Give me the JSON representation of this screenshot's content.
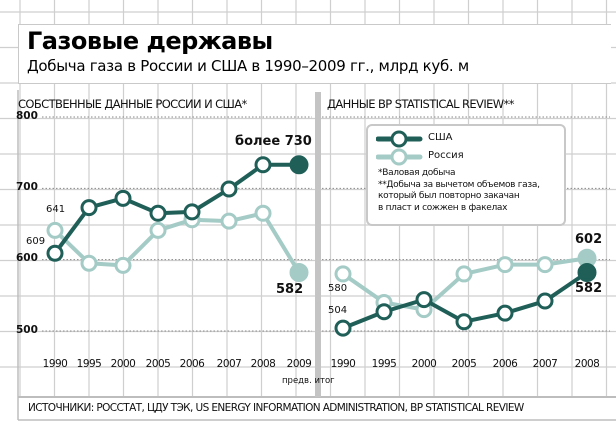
{
  "header": {
    "title": "Газовые державы",
    "subtitle": "Добыча газа в России и США в 1990–2009 гг., млрд куб. м"
  },
  "colors": {
    "usa": "#1f5f58",
    "russia": "#a4cbc6",
    "grid": "#cfcfcf",
    "divider": "#c4c4c4"
  },
  "legend": {
    "items": [
      {
        "label": "США",
        "color": "#1f5f58"
      },
      {
        "label": "Россия",
        "color": "#a4cbc6"
      }
    ],
    "notes": [
      "*Валовая добыча",
      "**Добыча за вычетом объемов газа,",
      "который был повторно закачан",
      "в пласт и сожжен в факелах"
    ]
  },
  "sources": "ИСТОЧНИКИ: РОССТАТ, ЦДУ ТЭК, US ENERGY INFORMATION ADMINISTRATION, BP STATISTICAL REVIEW",
  "chart_data": [
    {
      "type": "line",
      "title": "СОБСТВЕННЫЕ ДАННЫЕ РОССИИ И США*",
      "categories": [
        "1990",
        "1995",
        "2000",
        "2005",
        "2006",
        "2007",
        "2008",
        "2009"
      ],
      "category_note": "предв. итог",
      "yticks": [
        "800",
        "700",
        "600",
        "500"
      ],
      "ylim": [
        500,
        800
      ],
      "ylabel": "",
      "xlabel": "",
      "series": [
        {
          "name": "США",
          "values": [
            609,
            673,
            686,
            665,
            667,
            699,
            733,
            733
          ],
          "last_filled": true
        },
        {
          "name": "Россия",
          "values": [
            641,
            595,
            592,
            641,
            656,
            654,
            665,
            582
          ],
          "last_filled": true
        }
      ],
      "annotations": {
        "usa_first": "609",
        "russia_first": "641",
        "usa_last": "более 730",
        "russia_last": "582"
      }
    },
    {
      "type": "line",
      "title": "ДАННЫЕ BP STATISTICAL REVIEW**",
      "categories": [
        "1990",
        "1995",
        "2000",
        "2005",
        "2006",
        "2007",
        "2008"
      ],
      "ylim": [
        500,
        800
      ],
      "ylabel": "",
      "xlabel": "",
      "series": [
        {
          "name": "США",
          "values": [
            504,
            527,
            544,
            513,
            525,
            542,
            582
          ],
          "last_filled": true
        },
        {
          "name": "Россия",
          "values": [
            580,
            540,
            530,
            580,
            593,
            593,
            602
          ],
          "last_filled": true
        }
      ],
      "annotations": {
        "usa_first": "504",
        "russia_first": "580",
        "usa_last": "582",
        "russia_last": "602"
      }
    }
  ]
}
